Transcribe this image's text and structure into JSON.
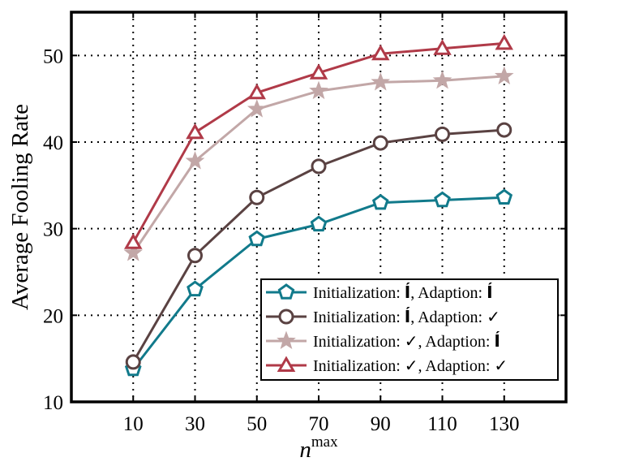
{
  "chart_data": {
    "type": "line",
    "title": "",
    "xlabel": "n",
    "xlabel_sup": "max",
    "ylabel": "Average Fooling Rate",
    "x": [
      10,
      30,
      50,
      70,
      90,
      110,
      130
    ],
    "xlim": [
      -10,
      150
    ],
    "ylim": [
      10,
      55
    ],
    "yticks": [
      10,
      20,
      30,
      40,
      50
    ],
    "grid": true,
    "legend_position": "bottom-right",
    "series": [
      {
        "name": "Initialization: Í , Adaption: Í",
        "legend_parts": {
          "init": "Í",
          "adapt": "Í"
        },
        "color": "#117a8b",
        "marker": "pentagon",
        "values": [
          13.8,
          23.0,
          28.8,
          30.5,
          33.0,
          33.3,
          33.6
        ]
      },
      {
        "name": "Initialization: Í , Adaption: ✓",
        "legend_parts": {
          "init": "Í",
          "adapt": "✓"
        },
        "color": "#5a4242",
        "marker": "circle",
        "values": [
          14.6,
          26.9,
          33.6,
          37.2,
          39.9,
          40.9,
          41.4
        ]
      },
      {
        "name": "Initialization: ✓, Adaption: Í",
        "legend_parts": {
          "init": "✓",
          "adapt": "Í"
        },
        "color": "#c2a7a7",
        "marker": "star",
        "values": [
          27.2,
          37.8,
          43.8,
          45.9,
          46.9,
          47.1,
          47.6
        ]
      },
      {
        "name": "Initialization: ✓, Adaption: ✓",
        "legend_parts": {
          "init": "✓",
          "adapt": "✓"
        },
        "color": "#b03a48",
        "marker": "triangle",
        "values": [
          28.4,
          41.1,
          45.7,
          48.0,
          50.2,
          50.8,
          51.4
        ]
      }
    ],
    "colors": {
      "frame": "#000000",
      "grid": "#000000",
      "background": "#ffffff"
    }
  },
  "legend": {
    "init_prefix": "Initialization: ",
    "adapt_prefix": ",  Adaption: "
  }
}
